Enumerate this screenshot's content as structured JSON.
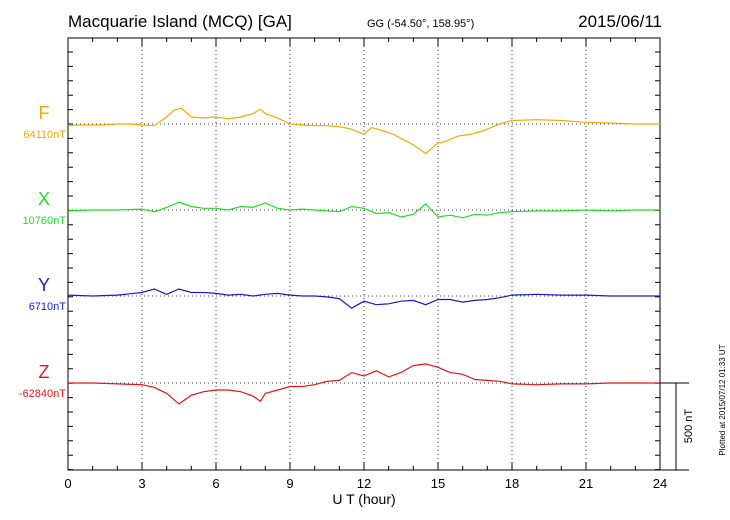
{
  "header": {
    "station": "Macquarie Island (MCQ)  [GA]",
    "coords": "GG (-54.50°, 158.95°)",
    "date": "2015/06/11"
  },
  "plotted_note": "Plotted at 2015/07/12 01:33 UT",
  "chart_data": {
    "type": "line",
    "title": "Macquarie Island (MCQ)  [GA]",
    "xlabel": "U T (hour)",
    "ylabel": "",
    "xlim": [
      0,
      24
    ],
    "x_ticks": [
      "0",
      "3",
      "6",
      "9",
      "12",
      "15",
      "18",
      "21",
      "24"
    ],
    "grid": true,
    "scale_bar": {
      "label": "500 nT",
      "value_nT": 500
    },
    "series": [
      {
        "name": "F",
        "baseline_label": "64110nT",
        "baseline_nT": 64110,
        "color": "#f5a800",
        "x": [
          0,
          0.5,
          1,
          1.5,
          2,
          2.5,
          3,
          3.5,
          4,
          4.3,
          4.6,
          5,
          5.5,
          6,
          6.5,
          7,
          7.5,
          7.8,
          8,
          8.5,
          9,
          9.5,
          10,
          10.5,
          11,
          11.5,
          12,
          12.3,
          12.8,
          13.2,
          13.6,
          14,
          14.5,
          15,
          15.3,
          15.8,
          16.3,
          16.8,
          17.5,
          18,
          19,
          20,
          21,
          22,
          23,
          24
        ],
        "values": [
          -10,
          -5,
          -5,
          -5,
          0,
          0,
          -5,
          -10,
          40,
          80,
          90,
          40,
          35,
          40,
          30,
          40,
          60,
          85,
          60,
          35,
          0,
          -5,
          -10,
          -10,
          -15,
          -30,
          -60,
          -20,
          -40,
          -60,
          -90,
          -120,
          -170,
          -110,
          -100,
          -70,
          -60,
          -40,
          0,
          20,
          25,
          20,
          10,
          5,
          0,
          0
        ]
      },
      {
        "name": "X",
        "baseline_label": "10760nT",
        "baseline_nT": 10760,
        "color": "#22dd22",
        "x": [
          0,
          1,
          2,
          3,
          3.5,
          4,
          4.5,
          5,
          5.5,
          6,
          6.5,
          7,
          7.5,
          8,
          8.5,
          9,
          9.5,
          10,
          10.5,
          11,
          11.5,
          12,
          12.5,
          13,
          13.5,
          14,
          14.5,
          15,
          15.5,
          16,
          16.5,
          17,
          17.5,
          18,
          19,
          20,
          21,
          22,
          23,
          24
        ],
        "values": [
          -5,
          0,
          0,
          5,
          -10,
          15,
          45,
          20,
          10,
          10,
          0,
          20,
          15,
          40,
          10,
          0,
          5,
          0,
          -5,
          -10,
          20,
          10,
          -20,
          -15,
          -40,
          -25,
          35,
          -40,
          -30,
          -45,
          -25,
          -30,
          -15,
          -10,
          -5,
          -5,
          0,
          -5,
          0,
          0
        ]
      },
      {
        "name": "Y",
        "baseline_label": "6710nT",
        "baseline_nT": 6710,
        "color": "#1a1acc",
        "x": [
          0,
          1,
          2,
          3,
          3.5,
          4,
          4.5,
          5,
          5.5,
          6,
          6.5,
          7,
          7.5,
          8,
          8.5,
          9,
          9.5,
          10,
          10.5,
          11,
          11.5,
          12,
          12.5,
          13,
          13.5,
          14,
          14.5,
          15,
          15.5,
          16,
          16.5,
          17,
          17.5,
          18,
          19,
          20,
          21,
          22,
          23,
          24
        ],
        "values": [
          5,
          0,
          5,
          20,
          40,
          10,
          40,
          20,
          20,
          15,
          5,
          10,
          0,
          10,
          15,
          5,
          0,
          0,
          -5,
          -15,
          -70,
          -30,
          -50,
          -45,
          -30,
          -25,
          -50,
          -20,
          -20,
          -35,
          -25,
          -20,
          -10,
          5,
          10,
          5,
          5,
          0,
          0,
          0
        ]
      },
      {
        "name": "Z",
        "baseline_label": "-62840nT",
        "baseline_nT": -62840,
        "color": "#e81515",
        "x": [
          0,
          1,
          2,
          3,
          3.5,
          4,
          4.5,
          5,
          5.5,
          6,
          6.5,
          7,
          7.5,
          7.8,
          8,
          8.5,
          9,
          9.5,
          10,
          10.5,
          11,
          11.5,
          12,
          12.5,
          13,
          13.5,
          14,
          14.5,
          15,
          15.5,
          16,
          16.5,
          17,
          17.5,
          18,
          19,
          20,
          21,
          22,
          23,
          24
        ],
        "values": [
          0,
          0,
          -5,
          -10,
          -25,
          -60,
          -120,
          -70,
          -50,
          -40,
          -40,
          -50,
          -75,
          -105,
          -60,
          -40,
          -20,
          -20,
          -10,
          10,
          15,
          60,
          40,
          70,
          35,
          60,
          100,
          110,
          90,
          60,
          50,
          20,
          15,
          10,
          -5,
          -10,
          -5,
          -5,
          0,
          0,
          0
        ]
      }
    ]
  }
}
